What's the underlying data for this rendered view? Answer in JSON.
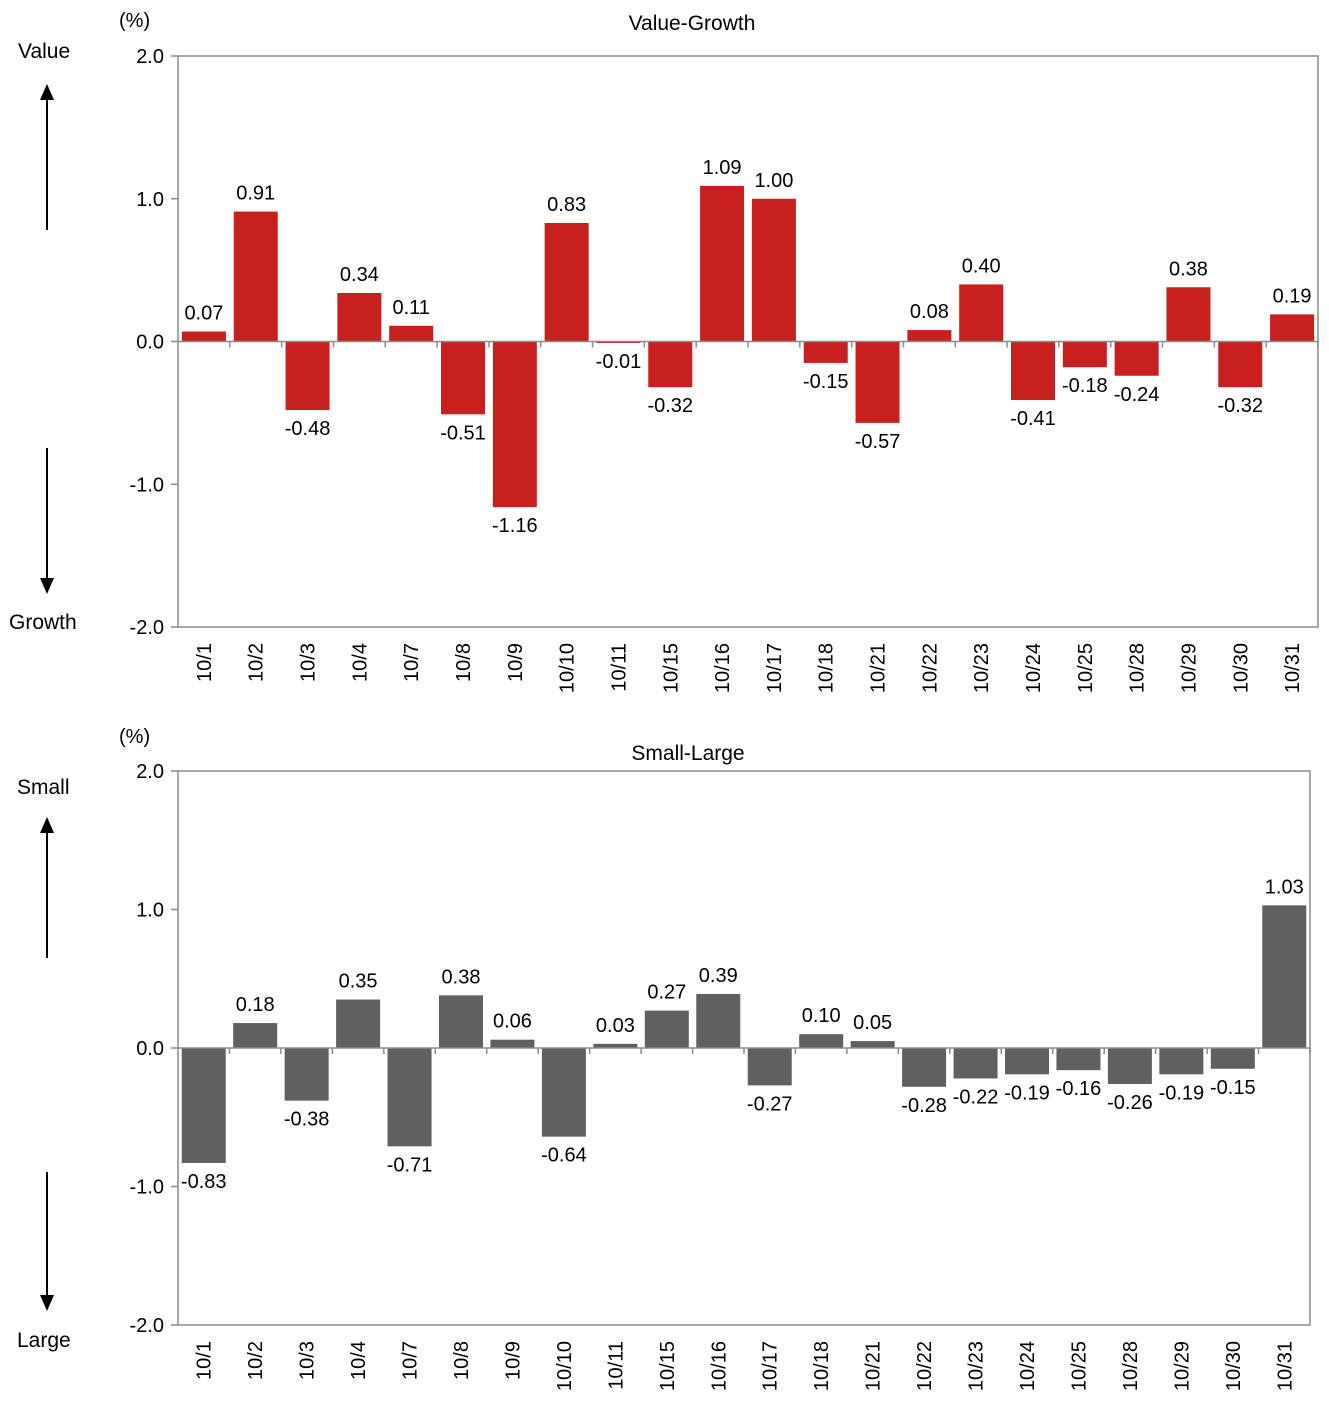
{
  "chart_data": [
    {
      "type": "bar",
      "title": "Value-Growth",
      "unit": "(%)",
      "top_label": "Value",
      "bottom_label": "Growth",
      "categories": [
        "10/1",
        "10/2",
        "10/3",
        "10/4",
        "10/7",
        "10/8",
        "10/9",
        "10/10",
        "10/11",
        "10/15",
        "10/16",
        "10/17",
        "10/18",
        "10/21",
        "10/22",
        "10/23",
        "10/24",
        "10/25",
        "10/28",
        "10/29",
        "10/30",
        "10/31"
      ],
      "values": [
        0.07,
        0.91,
        -0.48,
        0.34,
        0.11,
        -0.51,
        -1.16,
        0.83,
        -0.01,
        -0.32,
        1.09,
        1.0,
        -0.15,
        -0.57,
        0.08,
        0.4,
        -0.41,
        -0.18,
        -0.24,
        0.38,
        -0.32,
        0.19
      ],
      "value_labels": [
        "0.07",
        "0.91",
        "-0.48",
        "0.34",
        "0.11",
        "-0.51",
        "-1.16",
        "0.83",
        "-0.01",
        "-0.32",
        "1.09",
        "1.00",
        "-0.15",
        "-0.57",
        "0.08",
        "0.40",
        "-0.41",
        "-0.18",
        "-0.24",
        "0.38",
        "-0.32",
        "0.19"
      ],
      "ylim": [
        -2.0,
        2.0
      ],
      "yticks": [
        2.0,
        1.0,
        0.0,
        -1.0,
        -2.0
      ],
      "ytick_labels": [
        "2.0",
        "1.0",
        "0.0",
        "-1.0",
        "-2.0"
      ],
      "color": "#c8201f",
      "grid": false
    },
    {
      "type": "bar",
      "title": "Small-Large",
      "unit": "(%)",
      "top_label": "Small",
      "bottom_label": "Large",
      "categories": [
        "10/1",
        "10/2",
        "10/3",
        "10/4",
        "10/7",
        "10/8",
        "10/9",
        "10/10",
        "10/11",
        "10/15",
        "10/16",
        "10/17",
        "10/18",
        "10/21",
        "10/22",
        "10/23",
        "10/24",
        "10/25",
        "10/28",
        "10/29",
        "10/30",
        "10/31"
      ],
      "values": [
        -0.83,
        0.18,
        -0.38,
        0.35,
        -0.71,
        0.38,
        0.06,
        -0.64,
        0.03,
        0.27,
        0.39,
        -0.27,
        0.1,
        0.05,
        -0.28,
        -0.22,
        -0.19,
        -0.16,
        -0.26,
        -0.19,
        -0.15,
        1.03
      ],
      "value_labels": [
        "-0.83",
        "0.18",
        "-0.38",
        "0.35",
        "-0.71",
        "0.38",
        "0.06",
        "-0.64",
        "0.03",
        "0.27",
        "0.39",
        "-0.27",
        "0.10",
        "0.05",
        "-0.28",
        "-0.22",
        "-0.19",
        "-0.16",
        "-0.26",
        "-0.19",
        "-0.15",
        "1.03"
      ],
      "ylim": [
        -2.0,
        2.0
      ],
      "yticks": [
        2.0,
        1.0,
        0.0,
        -1.0,
        -2.0
      ],
      "ytick_labels": [
        "2.0",
        "1.0",
        "0.0",
        "-1.0",
        "-2.0"
      ],
      "color": "#606060",
      "grid": false
    }
  ]
}
